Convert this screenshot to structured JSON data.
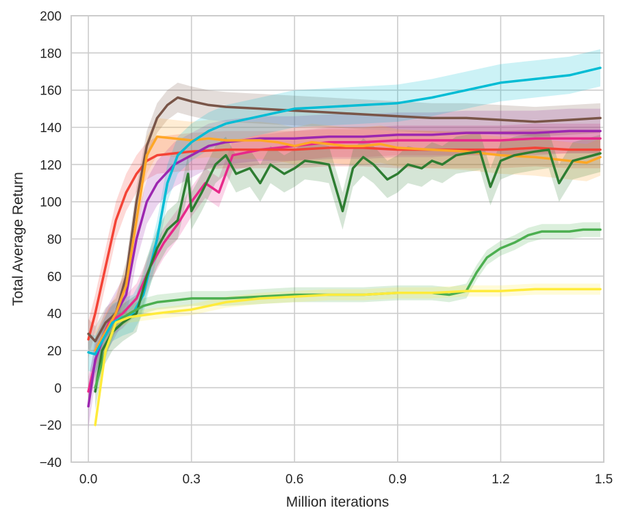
{
  "chart_data": {
    "type": "line",
    "title": "",
    "xlabel": "Million iterations",
    "ylabel": "Total Average Return",
    "xlim": [
      -0.05,
      1.5
    ],
    "ylim": [
      -40,
      200
    ],
    "xticks": [
      0.0,
      0.3,
      0.6,
      0.9,
      1.2,
      1.5
    ],
    "xtick_labels": [
      "0.0",
      "0.3",
      "0.6",
      "0.9",
      "1.2",
      "1.5"
    ],
    "yticks": [
      -40,
      -20,
      0,
      20,
      40,
      60,
      80,
      100,
      120,
      140,
      160,
      180,
      200
    ],
    "ytick_labels": [
      "−40",
      "−20",
      "0",
      "20",
      "40",
      "60",
      "80",
      "100",
      "120",
      "140",
      "160",
      "180",
      "200"
    ],
    "grid": true,
    "legend": "none",
    "series": [
      {
        "color": "#e7298a",
        "x": [
          0.0,
          0.03,
          0.06,
          0.1,
          0.14,
          0.18,
          0.22,
          0.26,
          0.3,
          0.34,
          0.38,
          0.42,
          0.5,
          0.6,
          0.7,
          0.8,
          0.9,
          1.0,
          1.1,
          1.2,
          1.3,
          1.4,
          1.49
        ],
        "y": [
          -2,
          22,
          35,
          40,
          48,
          65,
          78,
          88,
          100,
          110,
          105,
          125,
          128,
          130,
          132,
          132,
          133,
          133,
          133,
          133,
          134,
          134,
          134
        ],
        "band": 8
      },
      {
        "color": "#f44336",
        "x": [
          0.0,
          0.02,
          0.05,
          0.08,
          0.11,
          0.14,
          0.17,
          0.2,
          0.25,
          0.3,
          0.4,
          0.5,
          0.6,
          0.7,
          0.8,
          0.9,
          1.0,
          1.1,
          1.2,
          1.3,
          1.4,
          1.49
        ],
        "y": [
          26,
          40,
          65,
          90,
          105,
          115,
          122,
          125,
          126,
          127,
          128,
          128,
          128,
          129,
          129,
          128,
          128,
          128,
          128,
          129,
          128,
          128
        ],
        "band": 10
      },
      {
        "color": "#9c27b0",
        "x": [
          0.0,
          0.02,
          0.05,
          0.08,
          0.11,
          0.14,
          0.17,
          0.2,
          0.25,
          0.3,
          0.35,
          0.4,
          0.5,
          0.6,
          0.7,
          0.8,
          0.9,
          1.0,
          1.1,
          1.2,
          1.3,
          1.4,
          1.49
        ],
        "y": [
          -10,
          15,
          30,
          40,
          50,
          80,
          100,
          110,
          120,
          125,
          130,
          132,
          134,
          134,
          135,
          135,
          136,
          136,
          137,
          137,
          137,
          138,
          138
        ],
        "band": 12
      },
      {
        "color": "#795548",
        "x": [
          0.0,
          0.02,
          0.05,
          0.08,
          0.11,
          0.14,
          0.17,
          0.2,
          0.23,
          0.26,
          0.3,
          0.35,
          0.4,
          0.5,
          0.6,
          0.7,
          0.8,
          0.9,
          1.0,
          1.1,
          1.2,
          1.3,
          1.4,
          1.49
        ],
        "y": [
          29,
          25,
          35,
          40,
          60,
          100,
          130,
          145,
          152,
          156,
          154,
          152,
          151,
          150,
          149,
          148,
          147,
          146,
          145,
          145,
          144,
          143,
          144,
          145
        ],
        "band": 8
      },
      {
        "color": "#ffa726",
        "x": [
          0.02,
          0.05,
          0.08,
          0.11,
          0.14,
          0.17,
          0.2,
          0.25,
          0.3,
          0.35,
          0.4,
          0.45,
          0.5,
          0.55,
          0.6,
          0.65,
          0.7,
          0.75,
          0.8,
          0.85,
          0.9,
          1.0,
          1.1,
          1.2,
          1.3,
          1.4,
          1.45,
          1.49
        ],
        "y": [
          20,
          30,
          40,
          55,
          90,
          125,
          135,
          134,
          133,
          134,
          133,
          133,
          133,
          132,
          130,
          132,
          131,
          130,
          130,
          131,
          129,
          128,
          127,
          125,
          124,
          122,
          121,
          124
        ],
        "band": 10
      },
      {
        "color": "#00bcd4",
        "x": [
          0.0,
          0.02,
          0.04,
          0.07,
          0.1,
          0.13,
          0.16,
          0.2,
          0.23,
          0.26,
          0.3,
          0.35,
          0.4,
          0.5,
          0.6,
          0.7,
          0.8,
          0.9,
          1.0,
          1.1,
          1.2,
          1.3,
          1.4,
          1.49
        ],
        "y": [
          19,
          18,
          25,
          35,
          38,
          40,
          50,
          80,
          110,
          125,
          132,
          138,
          142,
          146,
          150,
          151,
          152,
          153,
          156,
          160,
          164,
          166,
          168,
          172
        ],
        "band": 10
      },
      {
        "color": "#2e7d32",
        "x": [
          0.02,
          0.04,
          0.07,
          0.1,
          0.14,
          0.17,
          0.2,
          0.23,
          0.26,
          0.29,
          0.3,
          0.33,
          0.37,
          0.4,
          0.43,
          0.47,
          0.5,
          0.53,
          0.57,
          0.6,
          0.63,
          0.67,
          0.7,
          0.74,
          0.77,
          0.8,
          0.83,
          0.87,
          0.9,
          0.93,
          0.97,
          1.0,
          1.03,
          1.07,
          1.1,
          1.14,
          1.17,
          1.2,
          1.24,
          1.27,
          1.3,
          1.34,
          1.37,
          1.41,
          1.45,
          1.49
        ],
        "y": [
          -2,
          20,
          30,
          35,
          40,
          60,
          75,
          85,
          90,
          115,
          95,
          105,
          120,
          125,
          115,
          118,
          110,
          120,
          115,
          118,
          122,
          121,
          120,
          95,
          118,
          124,
          120,
          112,
          115,
          120,
          118,
          122,
          120,
          125,
          126,
          127,
          108,
          122,
          125,
          126,
          127,
          128,
          110,
          122,
          124,
          126
        ],
        "band": 10
      },
      {
        "color": "#4caf50",
        "x": [
          0.02,
          0.05,
          0.08,
          0.12,
          0.16,
          0.2,
          0.3,
          0.4,
          0.5,
          0.6,
          0.7,
          0.8,
          0.9,
          1.0,
          1.05,
          1.1,
          1.13,
          1.16,
          1.2,
          1.24,
          1.28,
          1.32,
          1.36,
          1.4,
          1.44,
          1.49
        ],
        "y": [
          0,
          20,
          35,
          40,
          44,
          46,
          48,
          48,
          49,
          50,
          50,
          50,
          51,
          51,
          50,
          52,
          62,
          70,
          75,
          78,
          82,
          84,
          84,
          84,
          85,
          85
        ],
        "band": 4
      },
      {
        "color": "#ffeb3b",
        "x": [
          0.02,
          0.05,
          0.08,
          0.12,
          0.16,
          0.2,
          0.25,
          0.3,
          0.4,
          0.5,
          0.6,
          0.7,
          0.8,
          0.9,
          1.0,
          1.1,
          1.2,
          1.3,
          1.4,
          1.49
        ],
        "y": [
          -20,
          20,
          35,
          38,
          39,
          40,
          41,
          42,
          46,
          48,
          49,
          50,
          50,
          51,
          51,
          52,
          52,
          53,
          53,
          53
        ],
        "band": 3
      }
    ]
  }
}
